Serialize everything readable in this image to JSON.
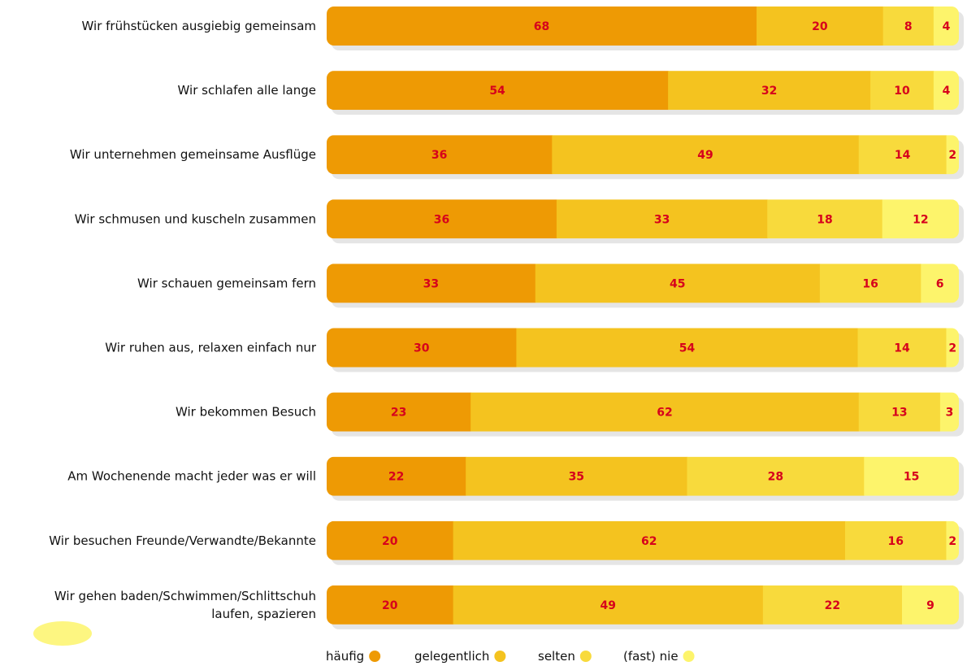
{
  "chart_data": {
    "type": "bar",
    "orientation": "horizontal",
    "stacked": true,
    "categories": [
      [
        "Wir frühstücken ausgiebig gemeinsam"
      ],
      [
        "Wir schlafen alle lange"
      ],
      [
        "Wir unternehmen gemeinsame Ausflüge"
      ],
      [
        "Wir schmusen und kuscheln zusammen"
      ],
      [
        "Wir schauen gemeinsam fern"
      ],
      [
        "Wir ruhen aus, relaxen einfach nur"
      ],
      [
        "Wir bekommen Besuch"
      ],
      [
        "Am Wochenende macht jeder was er will"
      ],
      [
        "Wir besuchen Freunde/Verwandte/Bekannte"
      ],
      [
        "Wir gehen baden/Schwimmen/Schlittschuh",
        "laufen, spazieren"
      ]
    ],
    "series": [
      {
        "name": "häufig",
        "color": "#ee9a04",
        "values": [
          68,
          54,
          36,
          36,
          33,
          30,
          23,
          22,
          20,
          20
        ]
      },
      {
        "name": "gelegentlich",
        "color": "#f4c31f",
        "values": [
          20,
          32,
          49,
          33,
          45,
          54,
          62,
          35,
          62,
          49
        ]
      },
      {
        "name": "selten",
        "color": "#f8da3c",
        "values": [
          8,
          10,
          14,
          18,
          16,
          14,
          13,
          28,
          16,
          22
        ]
      },
      {
        "name": "(fast) nie",
        "color": "#fdf46b",
        "values": [
          4,
          4,
          2,
          12,
          6,
          2,
          3,
          15,
          2,
          9
        ]
      }
    ],
    "legend_position": "bottom",
    "grid": false,
    "value_label_color": "#d6001c"
  }
}
